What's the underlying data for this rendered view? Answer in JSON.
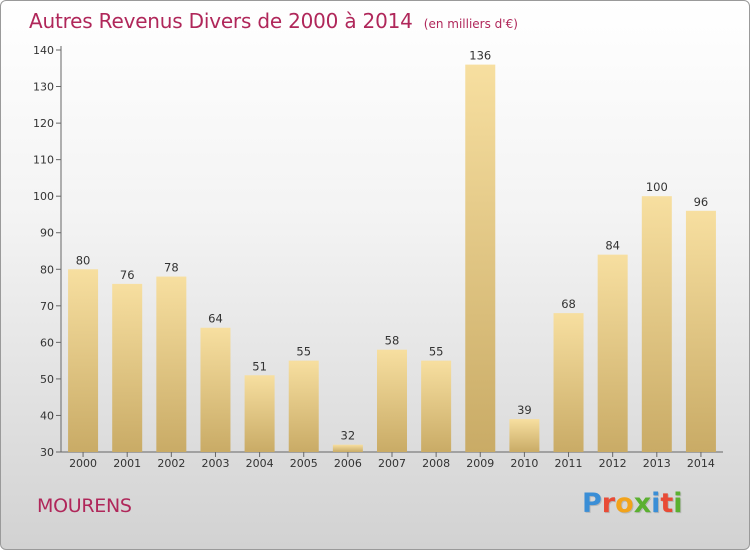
{
  "title": "Autres Revenus Divers de 2000 à 2014",
  "subtitle": "(en milliers d'€)",
  "location": "MOURENS",
  "brand": {
    "letters": [
      "P",
      "r",
      "o",
      "x",
      "i",
      "t",
      "i"
    ],
    "colors": [
      "#3a8ed6",
      "#e84b36",
      "#f2a31b",
      "#5bb030",
      "#3a8ed6",
      "#e84b36",
      "#5bb030"
    ]
  },
  "colors": {
    "bar_top": "#f7dfa0",
    "bar_bottom": "#c9ab66",
    "title": "#b0275a"
  },
  "chart_data": {
    "type": "bar",
    "title": "Autres Revenus Divers de 2000 à 2014",
    "subtitle": "(en milliers d'€)",
    "categories": [
      "2000",
      "2001",
      "2002",
      "2003",
      "2004",
      "2005",
      "2006",
      "2007",
      "2008",
      "2009",
      "2010",
      "2011",
      "2012",
      "2013",
      "2014"
    ],
    "values": [
      80,
      76,
      78,
      64,
      51,
      55,
      32,
      58,
      55,
      136,
      39,
      68,
      84,
      100,
      96
    ],
    "ylim": [
      30,
      140
    ],
    "yticks": [
      30,
      40,
      50,
      60,
      70,
      80,
      90,
      100,
      110,
      120,
      130,
      140
    ],
    "grid": false,
    "legend": "none"
  }
}
